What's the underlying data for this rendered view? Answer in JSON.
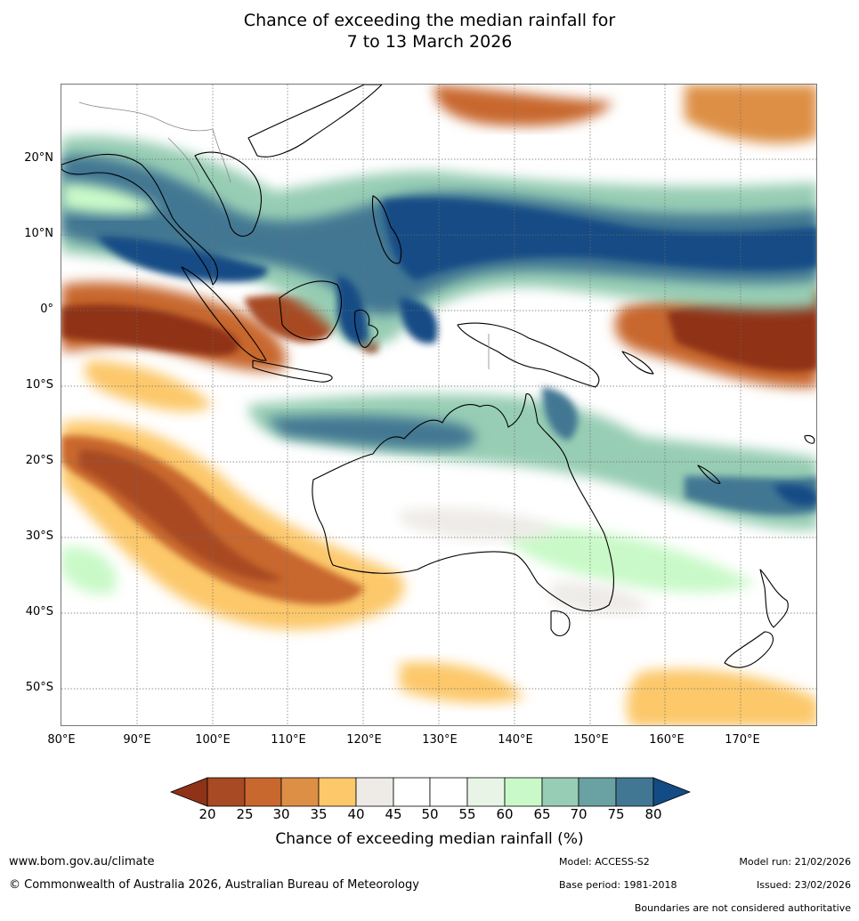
{
  "title_line1": "Chance of exceeding the median rainfall for",
  "title_line2": "7 to 13 March 2026",
  "map": {
    "lat_labels": [
      "20°N",
      "10°N",
      "0°",
      "10°S",
      "20°S",
      "30°S",
      "40°S",
      "50°S"
    ],
    "lon_labels": [
      "80°E",
      "90°E",
      "100°E",
      "110°E",
      "120°E",
      "130°E",
      "140°E",
      "150°E",
      "160°E",
      "170°E"
    ]
  },
  "legend": {
    "ticks": [
      "20",
      "25",
      "30",
      "35",
      "40",
      "45",
      "50",
      "55",
      "60",
      "65",
      "70",
      "75",
      "80"
    ],
    "colors": [
      "#8f3218",
      "#a84a24",
      "#c8672e",
      "#dd8f45",
      "#fcc86a",
      "#eeebe7",
      "#ffffff",
      "#ffffff",
      "#e8f5e6",
      "#c9f9c8",
      "#97cdb4",
      "#6aa1a3",
      "#427793",
      "#134b85"
    ],
    "label": "Chance of exceeding median rainfall (%)"
  },
  "footer": {
    "url": "www.bom.gov.au/climate",
    "copyright": "© Commonwealth of Australia 2026, Australian Bureau of Meteorology",
    "model": "Model: ACCESS-S2",
    "base_period": "Base period: 1981-2018",
    "model_run": "Model run: 21/02/2026",
    "issued": "Issued: 23/02/2026",
    "disclaimer": "Boundaries are not considered authoritative"
  }
}
